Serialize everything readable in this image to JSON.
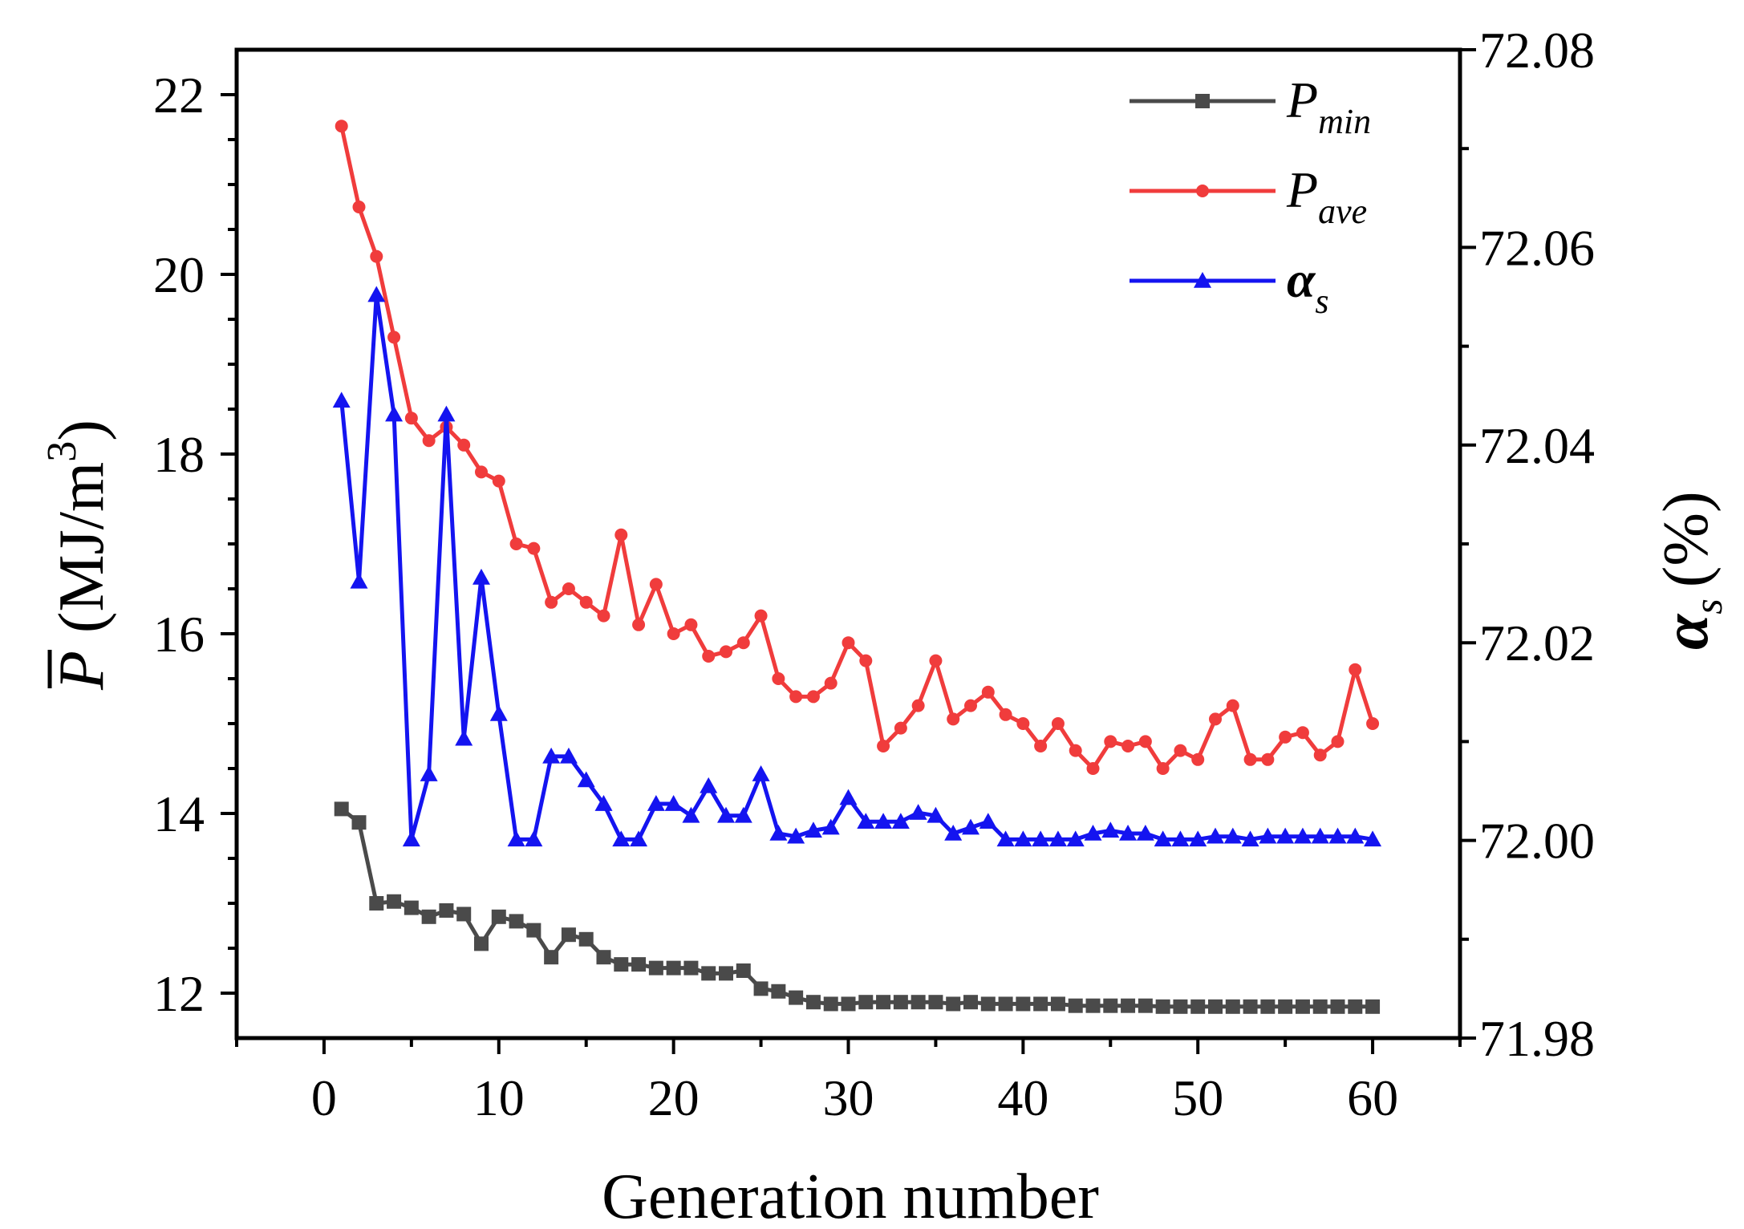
{
  "chart_data": {
    "type": "line",
    "title": "",
    "xlabel": "Generation number",
    "ylabel_left": "(MJ/m",
    "ylabel_left_symbol": "P",
    "ylabel_left_unit_exponent": "3",
    "ylabel_left_close": ")",
    "ylabel_right": "(%)",
    "ylabel_right_symbol": "α",
    "ylabel_right_subscript": "s",
    "xlim": [
      -5,
      65
    ],
    "ylim_left": [
      11.5,
      22.5
    ],
    "ylim_right": [
      71.98,
      72.08
    ],
    "x_ticks": [
      0,
      10,
      20,
      30,
      40,
      50,
      60
    ],
    "y_left_ticks": [
      12,
      14,
      16,
      18,
      20,
      22
    ],
    "y_right_ticks": [
      71.98,
      72.0,
      72.02,
      72.04,
      72.06,
      72.08
    ],
    "x_tick_labels": [
      "0",
      "10",
      "20",
      "30",
      "40",
      "50",
      "60"
    ],
    "y_left_tick_labels": [
      "12",
      "14",
      "16",
      "18",
      "20",
      "22"
    ],
    "y_right_tick_labels": [
      "71.98",
      "72.00",
      "72.02",
      "72.04",
      "72.06",
      "72.08"
    ],
    "grid": false,
    "legend_position": "top-right",
    "x": [
      1,
      2,
      3,
      4,
      5,
      6,
      7,
      8,
      9,
      10,
      11,
      12,
      13,
      14,
      15,
      16,
      17,
      18,
      19,
      20,
      21,
      22,
      23,
      24,
      25,
      26,
      27,
      28,
      29,
      30,
      31,
      32,
      33,
      34,
      35,
      36,
      37,
      38,
      39,
      40,
      41,
      42,
      43,
      44,
      45,
      46,
      47,
      48,
      49,
      50,
      51,
      52,
      53,
      54,
      55,
      56,
      57,
      58,
      59,
      60
    ],
    "series": [
      {
        "name": "P_min",
        "label_main": "P",
        "label_sub": "min",
        "axis": "left",
        "color": "#4a4a4a",
        "marker": "square",
        "values": [
          14.05,
          13.9,
          13.0,
          13.02,
          12.95,
          12.85,
          12.92,
          12.88,
          12.55,
          12.85,
          12.8,
          12.7,
          12.4,
          12.65,
          12.6,
          12.4,
          12.32,
          12.32,
          12.28,
          12.28,
          12.28,
          12.22,
          12.22,
          12.25,
          12.05,
          12.02,
          11.95,
          11.9,
          11.88,
          11.88,
          11.9,
          11.9,
          11.9,
          11.9,
          11.9,
          11.88,
          11.9,
          11.88,
          11.88,
          11.88,
          11.88,
          11.88,
          11.86,
          11.86,
          11.86,
          11.86,
          11.86,
          11.85,
          11.85,
          11.85,
          11.85,
          11.85,
          11.85,
          11.85,
          11.85,
          11.85,
          11.85,
          11.85,
          11.85,
          11.85
        ]
      },
      {
        "name": "P_ave",
        "label_main": "P",
        "label_sub": "ave",
        "axis": "left",
        "color": "#f03c3c",
        "marker": "circle",
        "values": [
          21.65,
          20.75,
          20.2,
          19.3,
          18.4,
          18.15,
          18.3,
          18.1,
          17.8,
          17.7,
          17.0,
          16.95,
          16.35,
          16.5,
          16.35,
          16.2,
          17.1,
          16.1,
          16.55,
          16.0,
          16.1,
          15.75,
          15.8,
          15.9,
          16.2,
          15.5,
          15.3,
          15.3,
          15.45,
          15.9,
          15.7,
          14.75,
          14.95,
          15.2,
          15.7,
          15.05,
          15.2,
          15.35,
          15.1,
          15.0,
          14.75,
          15.0,
          14.7,
          14.5,
          14.8,
          14.75,
          14.8,
          14.5,
          14.7,
          14.6,
          15.05,
          15.2,
          14.6,
          14.6,
          14.85,
          14.9,
          14.65,
          14.8,
          15.6,
          15.0
        ]
      },
      {
        "name": "alpha_s",
        "label_main": "α",
        "label_sub": "s",
        "axis": "right",
        "color": "#1414f0",
        "marker": "triangle",
        "values": [
          72.0445,
          72.0262,
          72.0552,
          72.0431,
          72.0001,
          72.0067,
          72.0431,
          72.0103,
          72.0266,
          72.0128,
          72.0001,
          72.0001,
          72.0085,
          72.0085,
          72.0061,
          72.0037,
          72.0001,
          72.0001,
          72.0037,
          72.0037,
          72.0025,
          72.0055,
          72.0025,
          72.0025,
          72.0067,
          72.0007,
          72.0004,
          72.001,
          72.0013,
          72.0043,
          72.0019,
          72.0019,
          72.0019,
          72.0028,
          72.0025,
          72.0007,
          72.0013,
          72.0019,
          72.0001,
          72.0001,
          72.0001,
          72.0001,
          72.0001,
          72.0007,
          72.001,
          72.0007,
          72.0007,
          72.0001,
          72.0001,
          72.0001,
          72.0004,
          72.0004,
          72.0001,
          72.0004,
          72.0004,
          72.0004,
          72.0004,
          72.0004,
          72.0004,
          72.0001
        ]
      }
    ]
  }
}
